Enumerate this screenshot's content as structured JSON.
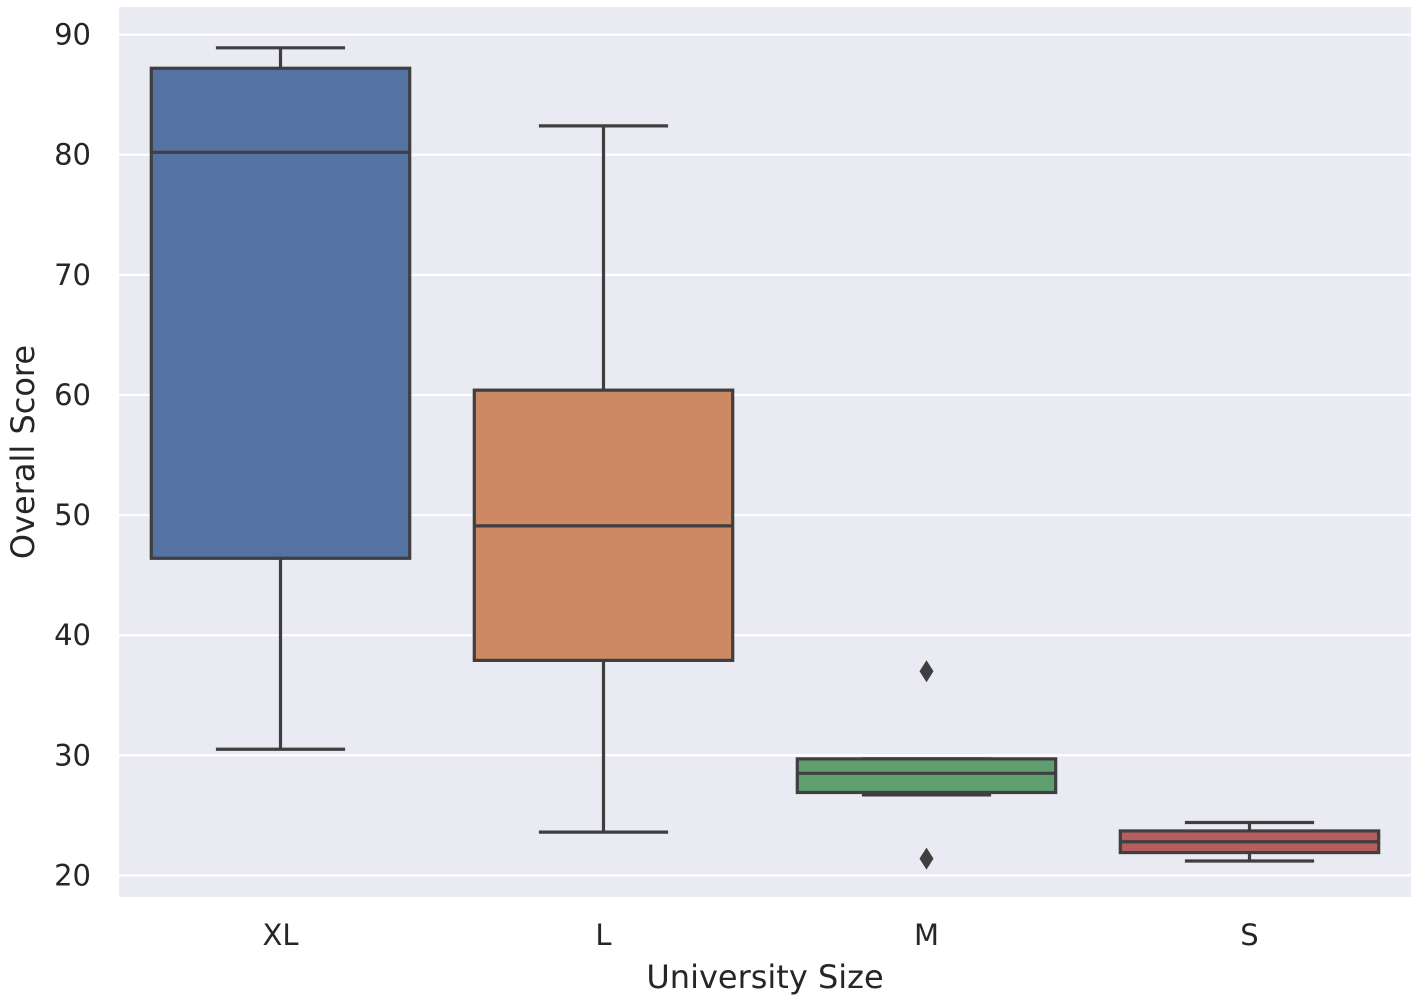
{
  "chart_data": {
    "type": "box",
    "xlabel": "University Size",
    "ylabel": "Overall Score",
    "ylim": [
      18.2,
      92.3
    ],
    "yticks": [
      20,
      30,
      40,
      50,
      60,
      70,
      80,
      90
    ],
    "grid": true,
    "categories": [
      "XL",
      "L",
      "M",
      "S"
    ],
    "boxes": [
      {
        "category": "XL",
        "whisker_low": 30.5,
        "q1": 46.4,
        "median": 80.2,
        "q3": 87.2,
        "whisker_high": 88.9,
        "outliers": [],
        "color": "#5573a2"
      },
      {
        "category": "L",
        "whisker_low": 23.6,
        "q1": 37.9,
        "median": 49.1,
        "q3": 60.4,
        "whisker_high": 82.4,
        "outliers": [],
        "color": "#cc8963"
      },
      {
        "category": "M",
        "whisker_low": 26.7,
        "q1": 26.9,
        "median": 28.5,
        "q3": 29.7,
        "whisker_high": 29.7,
        "outliers": [
          37.0,
          21.4
        ],
        "color": "#5f9e6e"
      },
      {
        "category": "S",
        "whisker_low": 21.2,
        "q1": 21.9,
        "median": 22.8,
        "q3": 23.7,
        "whisker_high": 24.4,
        "outliers": [],
        "color": "#b65d60"
      }
    ],
    "colors": {
      "background": "#eaeaf2",
      "grid": "#ffffff",
      "line": "#3f3f3f",
      "text": "#262626"
    }
  }
}
